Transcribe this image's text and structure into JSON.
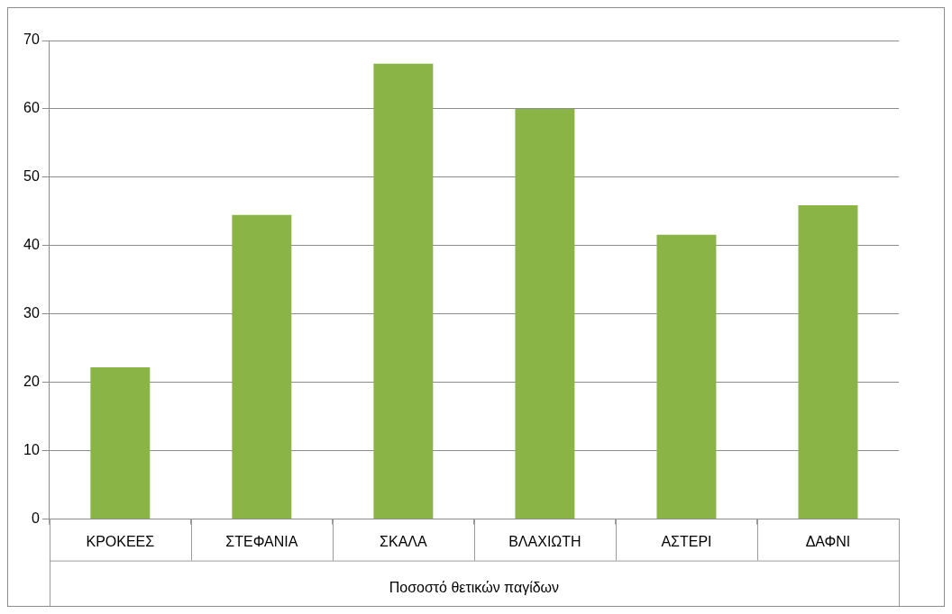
{
  "chart_data": {
    "type": "bar",
    "xlabel": "Ποσοστό θετικών παγίδων",
    "categories": [
      "ΚΡΟΚΕΕΣ",
      "ΣΤΕΦΑΝΙΑ",
      "ΣΚΑΛΑ",
      "ΒΛΑΧΙΩΤΗ",
      "ΑΣΤΕΡΙ",
      "ΔΑΦΝΙ"
    ],
    "values": [
      22.2,
      44.5,
      66.6,
      60,
      41.6,
      45.9
    ],
    "color": "#8ab446",
    "ylim": [
      0,
      70
    ],
    "yticks": [
      0,
      10,
      20,
      30,
      40,
      50,
      60,
      70
    ],
    "grid": "y",
    "legend": false
  }
}
